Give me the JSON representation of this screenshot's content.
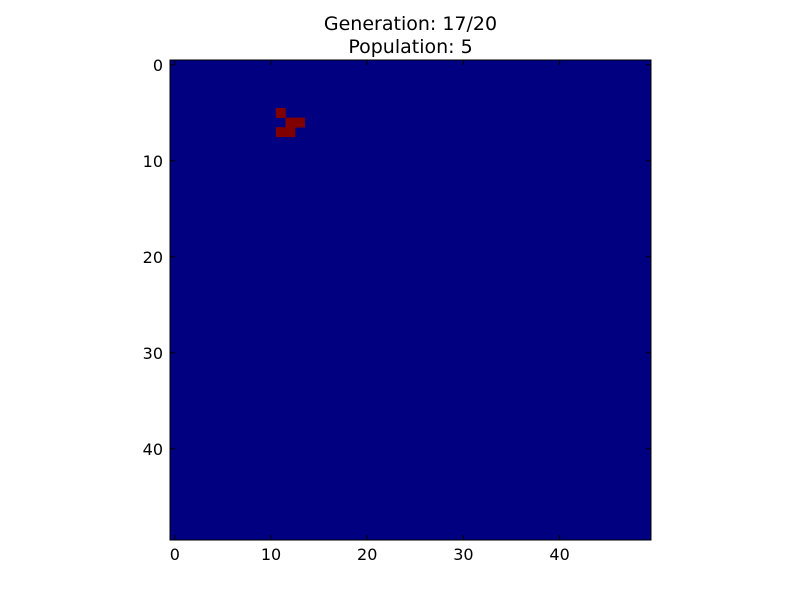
{
  "chart_data": {
    "type": "heatmap",
    "title_lines": [
      "Generation: 17/20",
      "Population: 5"
    ],
    "grid_size": [
      50,
      50
    ],
    "colors": {
      "dead": "#000080",
      "alive": "#800000"
    },
    "live_cells": [
      {
        "x": 11,
        "y": 5
      },
      {
        "x": 12,
        "y": 6
      },
      {
        "x": 13,
        "y": 6
      },
      {
        "x": 11,
        "y": 7
      },
      {
        "x": 12,
        "y": 7
      }
    ],
    "x_ticks": [
      0,
      10,
      20,
      30,
      40
    ],
    "y_ticks": [
      0,
      10,
      20,
      30,
      40
    ],
    "xlim": [
      -0.5,
      49.5
    ],
    "ylim": [
      -0.5,
      49.5
    ],
    "y_inverted": true,
    "grid": false,
    "xlabel": "",
    "ylabel": ""
  }
}
